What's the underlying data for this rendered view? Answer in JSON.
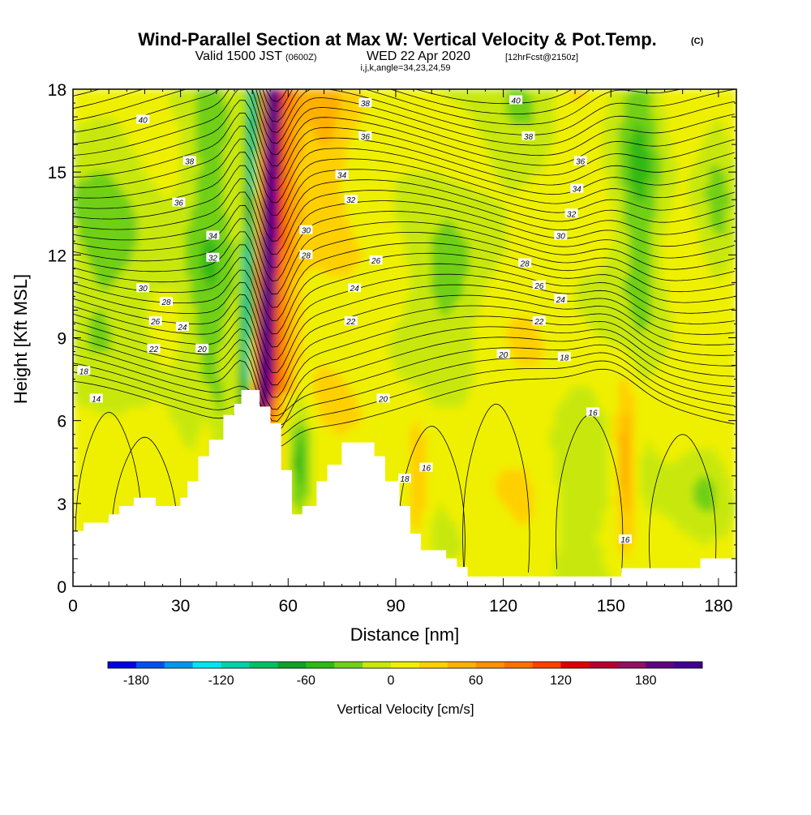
{
  "header": {
    "title": "Wind-Parallel Section at Max W: Vertical Velocity & Pot.Temp.",
    "copyright": "(C)",
    "valid_prefix": "Valid 1500 JST",
    "valid_z": "(0600Z)",
    "valid_date": "WED 22 Apr 2020",
    "forecast": "[12hrFcst@2150z]",
    "indices": "i,j,k,angle=34,23,24,59"
  },
  "chart_data": {
    "type": "heatmap",
    "xlabel": "Distance [nm]",
    "ylabel": "Height [Kft MSL]",
    "xlim": [
      0,
      185
    ],
    "ylim": [
      0,
      18
    ],
    "x_ticks": [
      "0",
      "30",
      "60",
      "90",
      "120",
      "150",
      "180"
    ],
    "y_ticks": [
      "0",
      "3",
      "6",
      "9",
      "12",
      "15",
      "18"
    ],
    "x_tick_values": [
      0,
      30,
      60,
      90,
      120,
      150,
      180
    ],
    "y_tick_values": [
      0,
      3,
      6,
      9,
      12,
      15,
      18
    ],
    "terrain": [
      [
        0,
        2
      ],
      [
        3,
        2
      ],
      [
        3,
        2.3
      ],
      [
        10,
        2.3
      ],
      [
        10,
        2.6
      ],
      [
        13,
        2.6
      ],
      [
        13,
        2.9
      ],
      [
        17,
        2.9
      ],
      [
        17,
        3.2
      ],
      [
        23,
        3.2
      ],
      [
        23,
        2.9
      ],
      [
        30,
        2.9
      ],
      [
        30,
        3.2
      ],
      [
        32,
        3.2
      ],
      [
        32,
        3.8
      ],
      [
        35,
        3.8
      ],
      [
        35,
        4.7
      ],
      [
        38,
        4.7
      ],
      [
        38,
        5.3
      ],
      [
        42,
        5.3
      ],
      [
        42,
        6.2
      ],
      [
        45,
        6.2
      ],
      [
        45,
        6.6
      ],
      [
        47,
        6.6
      ],
      [
        47,
        7.1
      ],
      [
        52,
        7.1
      ],
      [
        52,
        6.5
      ],
      [
        55,
        6.5
      ],
      [
        55,
        5.9
      ],
      [
        58,
        5.9
      ],
      [
        58,
        4.2
      ],
      [
        61,
        4.2
      ],
      [
        61,
        2.6
      ],
      [
        64,
        2.6
      ],
      [
        64,
        2.9
      ],
      [
        68,
        2.9
      ],
      [
        68,
        3.8
      ],
      [
        71,
        3.8
      ],
      [
        71,
        4.4
      ],
      [
        75,
        4.4
      ],
      [
        75,
        5.2
      ],
      [
        84,
        5.2
      ],
      [
        84,
        4.7
      ],
      [
        87,
        4.7
      ],
      [
        87,
        3.8
      ],
      [
        91,
        3.8
      ],
      [
        91,
        2.9
      ],
      [
        94,
        2.9
      ],
      [
        94,
        1.9
      ],
      [
        97,
        1.9
      ],
      [
        97,
        1.3
      ],
      [
        104,
        1.3
      ],
      [
        104,
        1
      ],
      [
        107,
        1
      ],
      [
        107,
        0.7
      ],
      [
        110,
        0.7
      ],
      [
        110,
        0.35
      ],
      [
        130,
        0.35
      ],
      [
        130,
        0.35
      ],
      [
        153,
        0.35
      ],
      [
        153,
        0.65
      ],
      [
        175,
        0.65
      ],
      [
        175,
        1
      ],
      [
        185,
        1
      ]
    ],
    "vertical_velocity": {
      "colorbar_label": "Vertical Velocity [cm/s]",
      "colorbar_ticks": [
        "-180",
        "-120",
        "-60",
        "0",
        "60",
        "120",
        "180"
      ],
      "colorbar_tick_values": [
        -180,
        -120,
        -60,
        0,
        60,
        120,
        180
      ],
      "levels": [
        -200,
        -180,
        -160,
        -140,
        -120,
        -100,
        -80,
        -60,
        -40,
        -20,
        0,
        20,
        40,
        60,
        80,
        100,
        120,
        140,
        160,
        180,
        200,
        220
      ],
      "colors": [
        "#0000e6",
        "#0050f0",
        "#0096f0",
        "#00e6f0",
        "#00d2aa",
        "#00c060",
        "#10a028",
        "#30b818",
        "#70d018",
        "#c8e808",
        "#eff000",
        "#ffd000",
        "#ffb000",
        "#ff9000",
        "#ff7000",
        "#ff4000",
        "#e00000",
        "#b80030",
        "#901060",
        "#600080",
        "#400090"
      ],
      "peak_updraft_cm_s": 210,
      "peak_updraft_x_nm": 57,
      "peak_downdraft_cm_s": -120,
      "peak_downdraft_x_nm": 48
    },
    "potential_temperature": {
      "contour_labels": [
        {
          "text": "40",
          "x": 19.5,
          "y": 16.9
        },
        {
          "text": "38",
          "x": 32.5,
          "y": 15.4
        },
        {
          "text": "36",
          "x": 29.5,
          "y": 13.9
        },
        {
          "text": "34",
          "x": 39,
          "y": 12.7
        },
        {
          "text": "32",
          "x": 39,
          "y": 11.9
        },
        {
          "text": "30",
          "x": 19.5,
          "y": 10.8
        },
        {
          "text": "28",
          "x": 26,
          "y": 10.3
        },
        {
          "text": "26",
          "x": 23,
          "y": 9.6
        },
        {
          "text": "24",
          "x": 30.5,
          "y": 9.4
        },
        {
          "text": "22",
          "x": 22.5,
          "y": 8.6
        },
        {
          "text": "20",
          "x": 36,
          "y": 8.6
        },
        {
          "text": "18",
          "x": 3,
          "y": 7.8
        },
        {
          "text": "14",
          "x": 6.5,
          "y": 6.8
        },
        {
          "text": "38",
          "x": 81.5,
          "y": 17.5
        },
        {
          "text": "36",
          "x": 81.5,
          "y": 16.3
        },
        {
          "text": "34",
          "x": 75,
          "y": 14.9
        },
        {
          "text": "32",
          "x": 77.5,
          "y": 14.0
        },
        {
          "text": "30",
          "x": 65,
          "y": 12.9
        },
        {
          "text": "28",
          "x": 65,
          "y": 12.0
        },
        {
          "text": "26",
          "x": 84.5,
          "y": 11.8
        },
        {
          "text": "24",
          "x": 78.5,
          "y": 10.8
        },
        {
          "text": "22",
          "x": 77.5,
          "y": 9.6
        },
        {
          "text": "20",
          "x": 86.5,
          "y": 6.8
        },
        {
          "text": "18",
          "x": 92.5,
          "y": 3.9
        },
        {
          "text": "16",
          "x": 98.5,
          "y": 4.3
        },
        {
          "text": "40",
          "x": 123.5,
          "y": 17.6
        },
        {
          "text": "38",
          "x": 127,
          "y": 16.3
        },
        {
          "text": "36",
          "x": 141.5,
          "y": 15.4
        },
        {
          "text": "34",
          "x": 140.5,
          "y": 14.4
        },
        {
          "text": "32",
          "x": 139,
          "y": 13.5
        },
        {
          "text": "30",
          "x": 136,
          "y": 12.7
        },
        {
          "text": "28",
          "x": 126,
          "y": 11.7
        },
        {
          "text": "26",
          "x": 130,
          "y": 10.9
        },
        {
          "text": "24",
          "x": 136,
          "y": 10.4
        },
        {
          "text": "22",
          "x": 130,
          "y": 9.6
        },
        {
          "text": "20",
          "x": 120,
          "y": 8.4
        },
        {
          "text": "18",
          "x": 137,
          "y": 8.3
        },
        {
          "text": "16",
          "x": 145,
          "y": 6.3
        },
        {
          "text": "16",
          "x": 154,
          "y": 1.7
        }
      ]
    }
  }
}
